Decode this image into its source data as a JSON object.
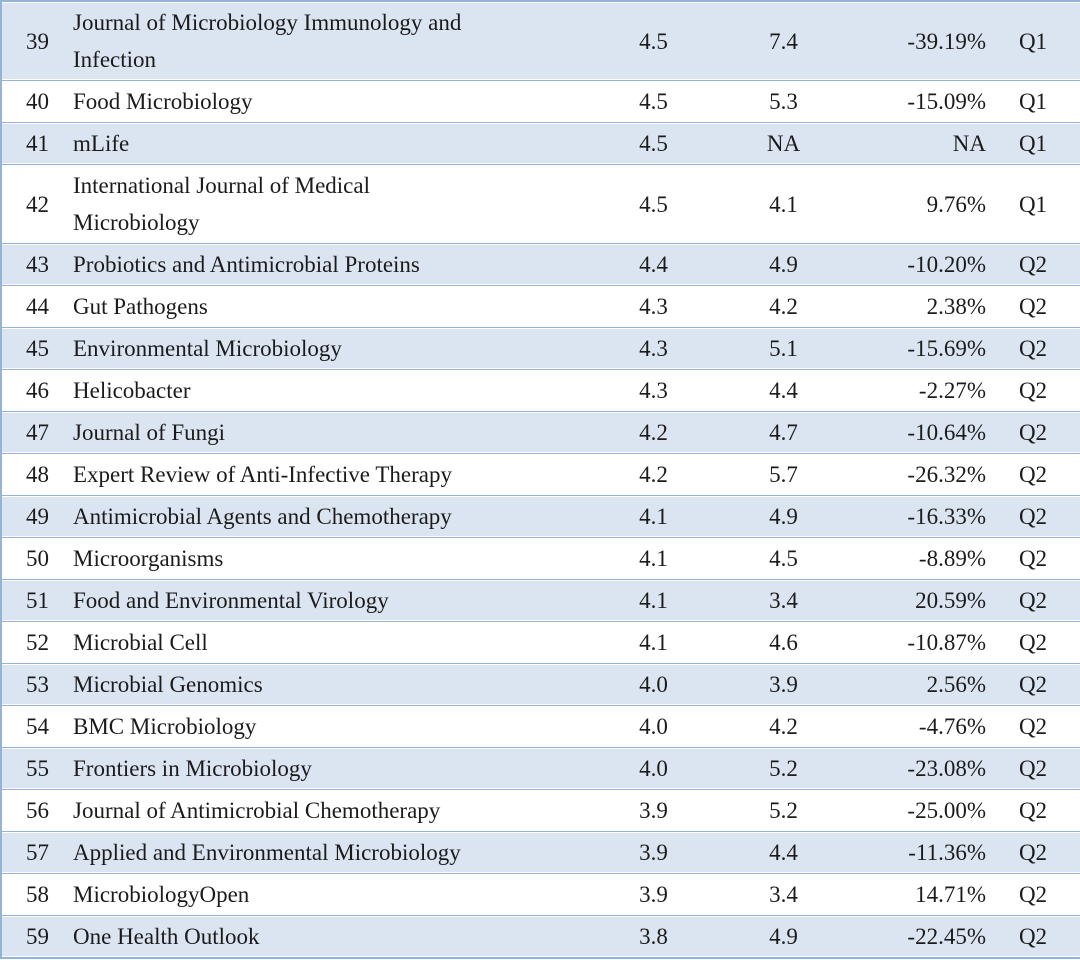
{
  "colors": {
    "row_shade": "#dbe5f1",
    "border": "#95b3d7",
    "text": "#1b1b1b",
    "background": "#ffffff"
  },
  "table": {
    "rows": [
      {
        "rank": "39",
        "journal": "Journal of Microbiology Immunology and\nInfection",
        "value1": "4.5",
        "value2": "7.4",
        "change": "-39.19%",
        "quartile": "Q1"
      },
      {
        "rank": "40",
        "journal": "Food Microbiology",
        "value1": "4.5",
        "value2": "5.3",
        "change": "-15.09%",
        "quartile": "Q1"
      },
      {
        "rank": "41",
        "journal": "mLife",
        "value1": "4.5",
        "value2": "NA",
        "change": "NA",
        "quartile": "Q1"
      },
      {
        "rank": "42",
        "journal": "International Journal of Medical\nMicrobiology",
        "value1": "4.5",
        "value2": "4.1",
        "change": "9.76%",
        "quartile": "Q1"
      },
      {
        "rank": "43",
        "journal": "Probiotics and Antimicrobial Proteins",
        "value1": "4.4",
        "value2": "4.9",
        "change": "-10.20%",
        "quartile": "Q2"
      },
      {
        "rank": "44",
        "journal": "Gut Pathogens",
        "value1": "4.3",
        "value2": "4.2",
        "change": "2.38%",
        "quartile": "Q2"
      },
      {
        "rank": "45",
        "journal": "Environmental Microbiology",
        "value1": "4.3",
        "value2": "5.1",
        "change": "-15.69%",
        "quartile": "Q2"
      },
      {
        "rank": "46",
        "journal": "Helicobacter",
        "value1": "4.3",
        "value2": "4.4",
        "change": "-2.27%",
        "quartile": "Q2"
      },
      {
        "rank": "47",
        "journal": "Journal of Fungi",
        "value1": "4.2",
        "value2": "4.7",
        "change": "-10.64%",
        "quartile": "Q2"
      },
      {
        "rank": "48",
        "journal": "Expert Review of Anti-Infective Therapy",
        "value1": "4.2",
        "value2": "5.7",
        "change": "-26.32%",
        "quartile": "Q2"
      },
      {
        "rank": "49",
        "journal": "Antimicrobial Agents and Chemotherapy",
        "value1": "4.1",
        "value2": "4.9",
        "change": "-16.33%",
        "quartile": "Q2"
      },
      {
        "rank": "50",
        "journal": "Microorganisms",
        "value1": "4.1",
        "value2": "4.5",
        "change": "-8.89%",
        "quartile": "Q2"
      },
      {
        "rank": "51",
        "journal": "Food and Environmental Virology",
        "value1": "4.1",
        "value2": "3.4",
        "change": "20.59%",
        "quartile": "Q2"
      },
      {
        "rank": "52",
        "journal": "Microbial Cell",
        "value1": "4.1",
        "value2": "4.6",
        "change": "-10.87%",
        "quartile": "Q2"
      },
      {
        "rank": "53",
        "journal": "Microbial Genomics",
        "value1": "4.0",
        "value2": "3.9",
        "change": "2.56%",
        "quartile": "Q2"
      },
      {
        "rank": "54",
        "journal": "BMC Microbiology",
        "value1": "4.0",
        "value2": "4.2",
        "change": "-4.76%",
        "quartile": "Q2"
      },
      {
        "rank": "55",
        "journal": "Frontiers in Microbiology",
        "value1": "4.0",
        "value2": "5.2",
        "change": "-23.08%",
        "quartile": "Q2"
      },
      {
        "rank": "56",
        "journal": "Journal of Antimicrobial Chemotherapy",
        "value1": "3.9",
        "value2": "5.2",
        "change": "-25.00%",
        "quartile": "Q2"
      },
      {
        "rank": "57",
        "journal": "Applied and Environmental Microbiology",
        "value1": "3.9",
        "value2": "4.4",
        "change": "-11.36%",
        "quartile": "Q2"
      },
      {
        "rank": "58",
        "journal": "MicrobiologyOpen",
        "value1": "3.9",
        "value2": "3.4",
        "change": "14.71%",
        "quartile": "Q2"
      },
      {
        "rank": "59",
        "journal": "One Health Outlook",
        "value1": "3.8",
        "value2": "4.9",
        "change": "-22.45%",
        "quartile": "Q2"
      }
    ]
  }
}
